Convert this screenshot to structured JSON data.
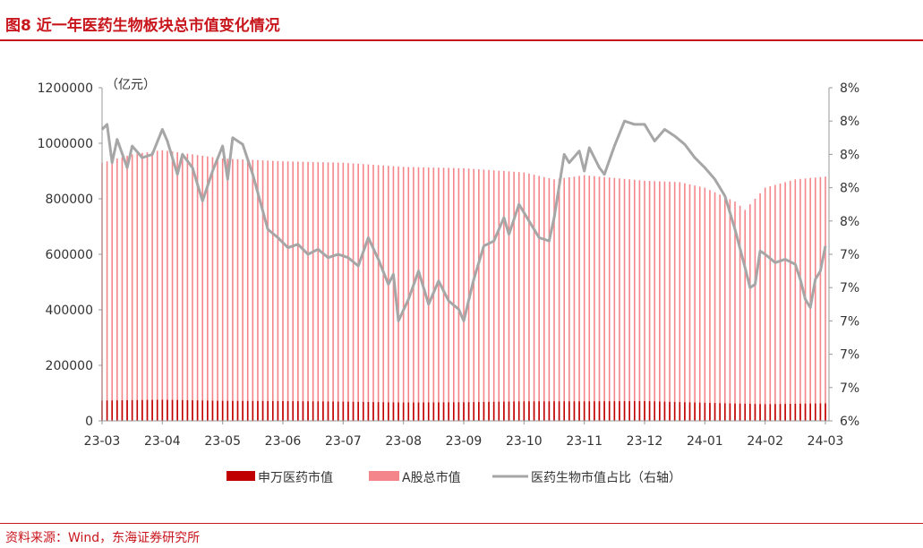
{
  "header": {
    "title": "图8 近一年医药生物板块总市值变化情况"
  },
  "footer": {
    "source": "资料来源：Wind，东海证券研究所"
  },
  "chart_data": {
    "type": "bar",
    "unit_label": "（亿元）",
    "x_ticks": [
      "23-03",
      "23-04",
      "23-05",
      "23-06",
      "23-07",
      "23-08",
      "23-09",
      "23-10",
      "23-11",
      "23-12",
      "24-01",
      "24-02",
      "24-03"
    ],
    "left_axis": {
      "min": 0,
      "max": 1200000,
      "ticks": [
        "0",
        "200000",
        "400000",
        "600000",
        "800000",
        "1000000",
        "1200000"
      ]
    },
    "right_axis": {
      "min": 0.06,
      "max": 0.08,
      "ticks": [
        "6%",
        "7%",
        "7%",
        "7%",
        "7%",
        "7%",
        "8%",
        "8%",
        "8%",
        "8%",
        "8%"
      ]
    },
    "legend": [
      {
        "name": "申万医药市值",
        "color": "#c00000",
        "kind": "bar"
      },
      {
        "name": "A股总市值",
        "color": "#f4868b",
        "kind": "bar"
      },
      {
        "name": "医药生物市值占比（右轴）",
        "color": "#a6a6a6",
        "kind": "line"
      }
    ],
    "series": [
      {
        "name": "申万医药市值",
        "keyframes": [
          [
            0,
            73000
          ],
          [
            12,
            76000
          ],
          [
            24,
            72000
          ],
          [
            36,
            71000
          ],
          [
            48,
            69000
          ],
          [
            60,
            66000
          ],
          [
            72,
            67000
          ],
          [
            84,
            70000
          ],
          [
            96,
            70000
          ],
          [
            108,
            71000
          ],
          [
            120,
            65000
          ],
          [
            132,
            60000
          ],
          [
            144,
            63000
          ]
        ]
      },
      {
        "name": "A股总市值",
        "keyframes": [
          [
            0,
            930000
          ],
          [
            6,
            960000
          ],
          [
            12,
            975000
          ],
          [
            18,
            960000
          ],
          [
            24,
            945000
          ],
          [
            36,
            935000
          ],
          [
            48,
            930000
          ],
          [
            60,
            915000
          ],
          [
            72,
            910000
          ],
          [
            84,
            895000
          ],
          [
            90,
            870000
          ],
          [
            96,
            885000
          ],
          [
            108,
            865000
          ],
          [
            115,
            860000
          ],
          [
            120,
            840000
          ],
          [
            126,
            790000
          ],
          [
            128,
            760000
          ],
          [
            132,
            840000
          ],
          [
            138,
            870000
          ],
          [
            144,
            880000
          ]
        ]
      },
      {
        "name": "医药生物市值占比（右轴）",
        "keyframes": [
          [
            0,
            0.0775
          ],
          [
            1,
            0.0778
          ],
          [
            2,
            0.0755
          ],
          [
            3,
            0.0769
          ],
          [
            5,
            0.0752
          ],
          [
            6,
            0.0765
          ],
          [
            8,
            0.0758
          ],
          [
            10,
            0.076
          ],
          [
            12,
            0.0775
          ],
          [
            13,
            0.0768
          ],
          [
            15,
            0.0748
          ],
          [
            16,
            0.076
          ],
          [
            18,
            0.0752
          ],
          [
            20,
            0.0732
          ],
          [
            22,
            0.075
          ],
          [
            24,
            0.0765
          ],
          [
            25,
            0.0745
          ],
          [
            26,
            0.077
          ],
          [
            28,
            0.0766
          ],
          [
            30,
            0.0748
          ],
          [
            33,
            0.0715
          ],
          [
            35,
            0.071
          ],
          [
            37,
            0.0704
          ],
          [
            39,
            0.0706
          ],
          [
            41,
            0.07
          ],
          [
            43,
            0.0703
          ],
          [
            45,
            0.0698
          ],
          [
            47,
            0.07
          ],
          [
            49,
            0.0698
          ],
          [
            51,
            0.0693
          ],
          [
            53,
            0.071
          ],
          [
            55,
            0.0697
          ],
          [
            57,
            0.0682
          ],
          [
            58,
            0.0688
          ],
          [
            59,
            0.066
          ],
          [
            61,
            0.0673
          ],
          [
            63,
            0.069
          ],
          [
            65,
            0.067
          ],
          [
            67,
            0.0684
          ],
          [
            69,
            0.0672
          ],
          [
            71,
            0.0667
          ],
          [
            72,
            0.066
          ],
          [
            74,
            0.0685
          ],
          [
            76,
            0.0705
          ],
          [
            78,
            0.0708
          ],
          [
            80,
            0.0722
          ],
          [
            81,
            0.0712
          ],
          [
            83,
            0.073
          ],
          [
            85,
            0.072
          ],
          [
            87,
            0.071
          ],
          [
            89,
            0.0708
          ],
          [
            90,
            0.0722
          ],
          [
            92,
            0.076
          ],
          [
            93,
            0.0755
          ],
          [
            95,
            0.0762
          ],
          [
            96,
            0.075
          ],
          [
            97,
            0.0764
          ],
          [
            99,
            0.0752
          ],
          [
            100,
            0.0748
          ],
          [
            102,
            0.0765
          ],
          [
            104,
            0.078
          ],
          [
            106,
            0.0778
          ],
          [
            108,
            0.0778
          ],
          [
            110,
            0.0768
          ],
          [
            112,
            0.0775
          ],
          [
            114,
            0.0771
          ],
          [
            116,
            0.0766
          ],
          [
            117,
            0.0762
          ],
          [
            118,
            0.0758
          ],
          [
            120,
            0.0752
          ],
          [
            122,
            0.0745
          ],
          [
            124,
            0.0735
          ],
          [
            126,
            0.0715
          ],
          [
            128,
            0.0692
          ],
          [
            129,
            0.068
          ],
          [
            130,
            0.0682
          ],
          [
            131,
            0.0702
          ],
          [
            132,
            0.07
          ],
          [
            134,
            0.0695
          ],
          [
            136,
            0.0697
          ],
          [
            138,
            0.0694
          ],
          [
            139,
            0.0685
          ],
          [
            140,
            0.0673
          ],
          [
            141,
            0.0668
          ],
          [
            142,
            0.0685
          ],
          [
            143,
            0.069
          ],
          [
            144,
            0.0705
          ]
        ]
      }
    ]
  }
}
